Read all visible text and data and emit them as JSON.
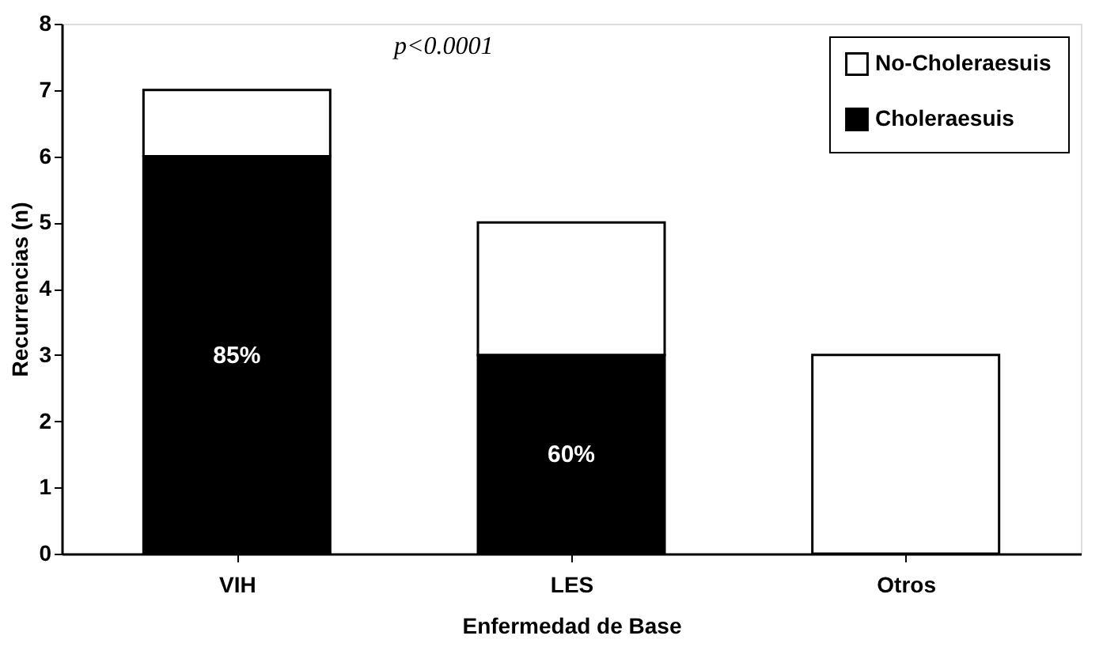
{
  "chart_data": {
    "type": "bar",
    "stacked": true,
    "categories": [
      "VIH",
      "LES",
      "Otros"
    ],
    "series": [
      {
        "name": "Choleraesuis",
        "color": "#000000",
        "values": [
          6,
          3,
          0
        ]
      },
      {
        "name": "No-Choleraesuis",
        "color": "#ffffff",
        "values": [
          1,
          2,
          3
        ]
      }
    ],
    "xlabel": "Enfermedad de Base",
    "ylabel": "Recurrencias (n)",
    "ylim": [
      0,
      8
    ],
    "yticks": [
      0,
      1,
      2,
      3,
      4,
      5,
      6,
      7,
      8
    ],
    "annotations": [
      "p<0.0001",
      "85%",
      "60%"
    ],
    "legend": "top right",
    "grid": false
  }
}
